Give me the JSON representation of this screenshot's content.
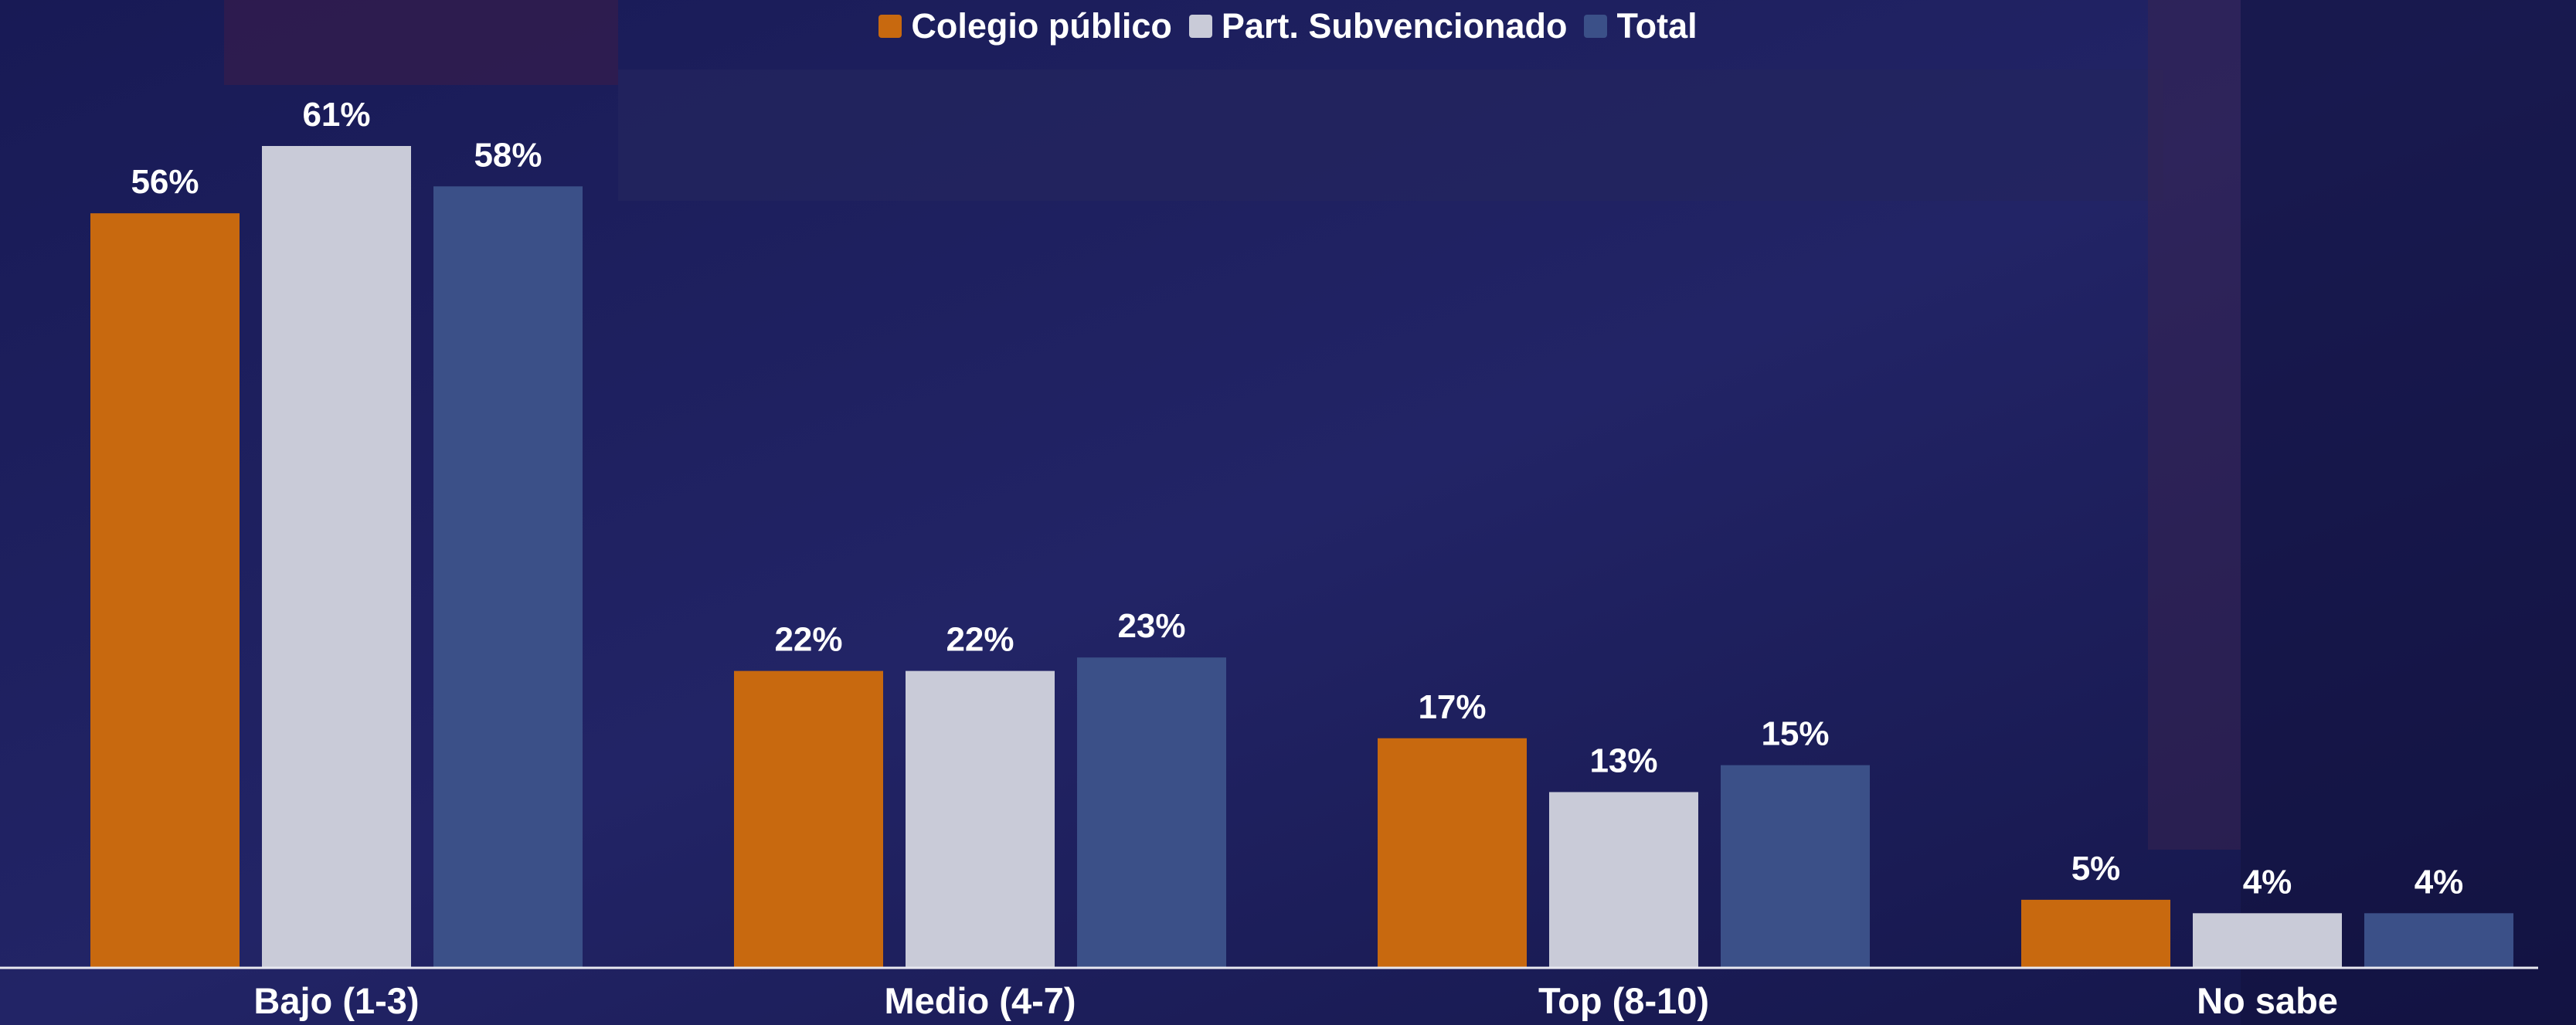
{
  "chart_data": {
    "type": "bar",
    "categories": [
      "Bajo (1-3)",
      "Medio (4-7)",
      "Top (8-10)",
      "No sabe"
    ],
    "series": [
      {
        "name": "Colegio público",
        "color": "#c8690f",
        "values": [
          56,
          22,
          17,
          5
        ],
        "value_labels": [
          "56%",
          "22%",
          "17%",
          "5%"
        ]
      },
      {
        "name": "Part. Subvencionado",
        "color": "#c9cbd8",
        "values": [
          61,
          22,
          13,
          4
        ],
        "value_labels": [
          "61%",
          "22%",
          "13%",
          "4%"
        ]
      },
      {
        "name": "Total",
        "color": "#3b5088",
        "values": [
          58,
          23,
          15,
          4
        ],
        "value_labels": [
          "58%",
          "23%",
          "15%",
          "4%"
        ]
      }
    ],
    "legend": "top"
  }
}
